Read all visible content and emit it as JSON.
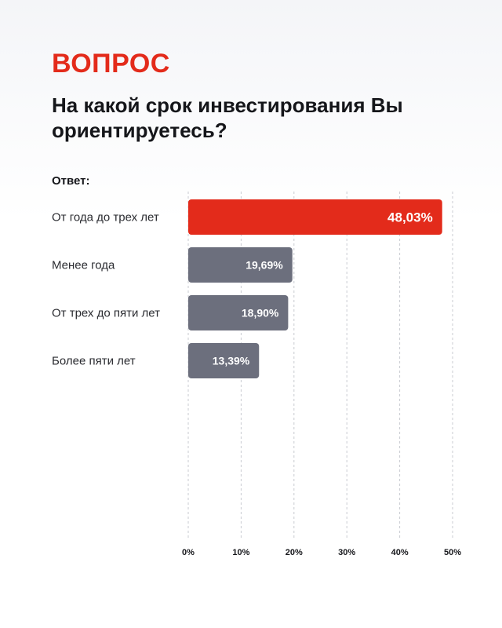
{
  "header": {
    "kicker": "ВОПРОС",
    "question": "На какой срок инвестирования Вы ориентируетесь?",
    "answer_label": "Ответ:"
  },
  "colors": {
    "accent": "#e32b1b",
    "bar": "#6c6f7d",
    "grid": "#c9cbd1"
  },
  "chart_data": {
    "type": "bar",
    "orientation": "horizontal",
    "categories": [
      "От года до трех лет",
      "Менее года",
      "От трех до пяти лет",
      "Более пяти лет"
    ],
    "values": [
      48.03,
      19.69,
      18.9,
      13.39
    ],
    "value_labels": [
      "48,03%",
      "19,69%",
      "18,90%",
      "13,39%"
    ],
    "highlight_index": 0,
    "xlim": [
      0,
      50
    ],
    "ticks": [
      0,
      10,
      20,
      30,
      40,
      50
    ],
    "tick_labels": [
      "0%",
      "10%",
      "20%",
      "30%",
      "40%",
      "50%"
    ],
    "grid": true,
    "grid_style": "dashed-vertical"
  }
}
